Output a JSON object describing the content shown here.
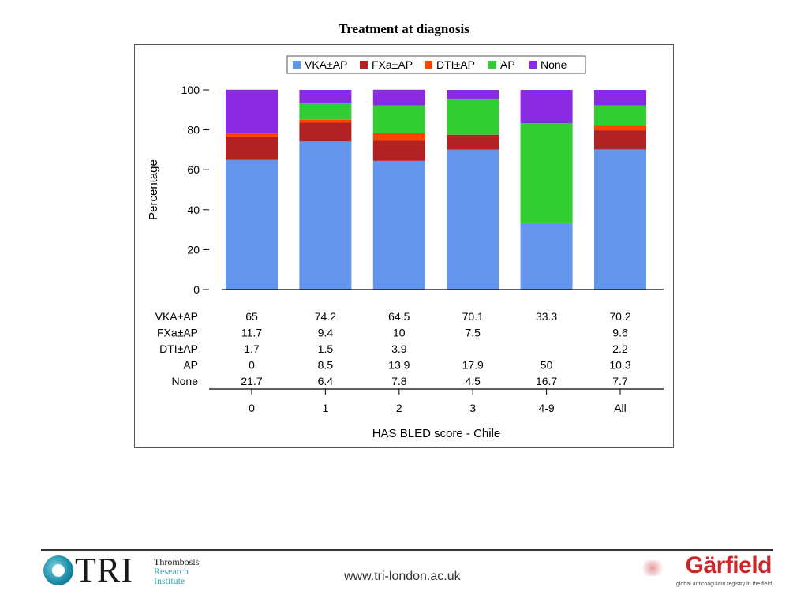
{
  "slide": {
    "title": "Treatment at diagnosis"
  },
  "chart_data": {
    "type": "bar",
    "stacked": true,
    "categories": [
      "0",
      "1",
      "2",
      "3",
      "4-9",
      "All"
    ],
    "xlabel": "HAS BLED score - Chile",
    "ylabel": "Percentage",
    "ylim": [
      0,
      100
    ],
    "yticks": [
      0,
      20,
      40,
      60,
      80,
      100
    ],
    "legend_position": "top",
    "grid": false,
    "series": [
      {
        "name": "VKA±AP",
        "color": "#6495ed",
        "values": [
          65,
          74.2,
          64.5,
          70.1,
          33.3,
          70.2
        ],
        "labels": [
          "65",
          "74.2",
          "64.5",
          "70.1",
          "33.3",
          "70.2"
        ]
      },
      {
        "name": "FXa±AP",
        "color": "#b22222",
        "values": [
          11.7,
          9.4,
          10,
          7.5,
          0,
          9.6
        ],
        "labels": [
          "11.7",
          "9.4",
          "10",
          "7.5",
          "",
          "9.6"
        ]
      },
      {
        "name": "DTI±AP",
        "color": "#ff4500",
        "values": [
          1.7,
          1.5,
          3.9,
          0,
          0,
          2.2
        ],
        "labels": [
          "1.7",
          "1.5",
          "3.9",
          "",
          "",
          "2.2"
        ]
      },
      {
        "name": "AP",
        "color": "#32cd32",
        "values": [
          0,
          8.5,
          13.9,
          17.9,
          50,
          10.3
        ],
        "labels": [
          "0",
          "8.5",
          "13.9",
          "17.9",
          "50",
          "10.3"
        ]
      },
      {
        "name": "None",
        "color": "#8a2be2",
        "values": [
          21.7,
          6.4,
          7.8,
          4.5,
          16.7,
          7.7
        ],
        "labels": [
          "21.7",
          "6.4",
          "7.8",
          "4.5",
          "16.7",
          "7.7"
        ]
      }
    ]
  },
  "footer": {
    "tri_logo_text": "TRI",
    "tri_line1": "Thrombosis",
    "tri_line2": "Research",
    "tri_line3": "Institute",
    "url": "www.tri-london.ac.uk",
    "garfield_logo_text": "Gärfield",
    "garfield_tagline": "global anticoagulant registry in the field"
  }
}
